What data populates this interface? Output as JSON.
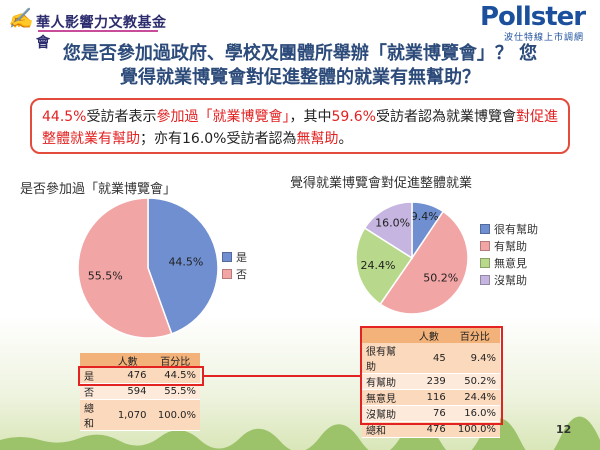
{
  "header": {
    "org_name": "華人影響力文教基金會",
    "brand": "Pollster",
    "tagline": "波仕特線上市調網"
  },
  "title_line1": "您是否參加過政府、學校及團體所舉辦「就業博覽會」？ 您",
  "title_line2": "覺得就業博覽會對促進整體的就業有無幫助？",
  "summary": {
    "p1": "44.5%",
    "p2": "受訪者表示",
    "p3": "參加過「就業博覽會」",
    "p4": "，其中",
    "p5": "59.6%",
    "p6": "受訪者認為就業博覽會",
    "p7": "對促進整體就業有幫助",
    "p8": "；亦有16.0%受訪者認為",
    "p9": "無幫助",
    "p10": "。"
  },
  "colors": {
    "yes": "#6f8fd0",
    "no": "#f2a5a5",
    "very_helpful": "#6f8fd0",
    "helpful": "#f2a5a5",
    "neutral": "#b8d98b",
    "not_helpful": "#c5b5e0",
    "highlight": "#e32222"
  },
  "chart_data": [
    {
      "type": "pie",
      "title": "是否參加過「就業博覽會」",
      "categories": [
        "是",
        "否"
      ],
      "values": [
        44.5,
        55.5
      ],
      "data_labels": [
        "44.5%",
        "55.5%"
      ],
      "legend_placement": "right",
      "table": {
        "headers": [
          "",
          "人數",
          "百分比"
        ],
        "rows": [
          [
            "是",
            "476",
            "44.5%"
          ],
          [
            "否",
            "594",
            "55.5%"
          ],
          [
            "總和",
            "1,070",
            "100.0%"
          ]
        ]
      }
    },
    {
      "type": "pie",
      "title": "覺得就業博覽會對促進整體就業",
      "categories": [
        "很有幫助",
        "有幫助",
        "無意見",
        "沒幫助"
      ],
      "values": [
        9.4,
        50.2,
        24.4,
        16.0
      ],
      "data_labels": [
        "9.4%",
        "50.2%",
        "24.4%",
        "16.0%"
      ],
      "legend_placement": "right",
      "table": {
        "headers": [
          "",
          "人數",
          "百分比"
        ],
        "rows": [
          [
            "很有幫助",
            "45",
            "9.4%"
          ],
          [
            "有幫助",
            "239",
            "50.2%"
          ],
          [
            "無意見",
            "116",
            "24.4%"
          ],
          [
            "沒幫助",
            "76",
            "16.0%"
          ],
          [
            "總和",
            "476",
            "100.0%"
          ]
        ]
      }
    }
  ],
  "page_number": "12"
}
